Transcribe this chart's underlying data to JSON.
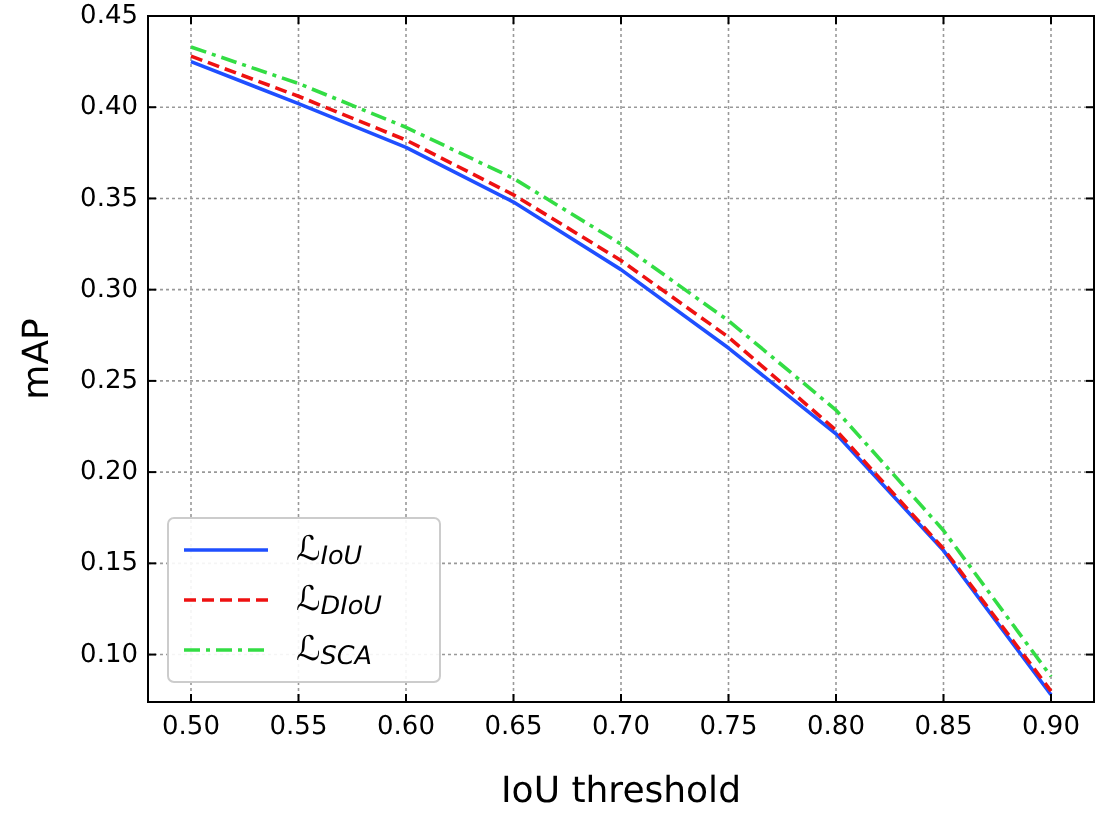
{
  "chart_data": {
    "type": "line",
    "xlabel": "IoU threshold",
    "ylabel": "mAP",
    "x": [
      0.5,
      0.55,
      0.6,
      0.65,
      0.7,
      0.75,
      0.8,
      0.85,
      0.9
    ],
    "series": [
      {
        "name": "ℒ$_{IoU}$",
        "color": "#1f4fff",
        "line_style": "solid",
        "values": [
          0.425,
          0.402,
          0.378,
          0.348,
          0.311,
          0.268,
          0.221,
          0.157,
          0.078
        ]
      },
      {
        "name": "ℒ$_{DIoU}$",
        "color": "#ee1111",
        "line_style": "dashed",
        "values": [
          0.428,
          0.406,
          0.382,
          0.352,
          0.316,
          0.274,
          0.223,
          0.158,
          0.08
        ]
      },
      {
        "name": "ℒ$_{SCA}$",
        "color": "#33dd44",
        "line_style": "dashdot",
        "values": [
          0.433,
          0.413,
          0.389,
          0.361,
          0.325,
          0.283,
          0.234,
          0.168,
          0.088
        ]
      }
    ],
    "xlim": [
      0.48,
      0.92
    ],
    "xticks": [
      {
        "value": 0.5,
        "label": "0.50"
      },
      {
        "value": 0.55,
        "label": "0.55"
      },
      {
        "value": 0.6,
        "label": "0.60"
      },
      {
        "value": 0.65,
        "label": "0.65"
      },
      {
        "value": 0.7,
        "label": "0.70"
      },
      {
        "value": 0.75,
        "label": "0.75"
      },
      {
        "value": 0.8,
        "label": "0.80"
      },
      {
        "value": 0.85,
        "label": "0.85"
      },
      {
        "value": 0.9,
        "label": "0.90"
      }
    ],
    "ylim": [
      0.074,
      0.45
    ],
    "yticks": [
      {
        "value": 0.1,
        "label": "0.10"
      },
      {
        "value": 0.15,
        "label": "0.15"
      },
      {
        "value": 0.2,
        "label": "0.20"
      },
      {
        "value": 0.25,
        "label": "0.25"
      },
      {
        "value": 0.3,
        "label": "0.30"
      },
      {
        "value": 0.35,
        "label": "0.35"
      },
      {
        "value": 0.4,
        "label": "0.40"
      },
      {
        "value": 0.45,
        "label": "0.45"
      }
    ],
    "grid": true,
    "legend": "bottom left",
    "marker": "none"
  }
}
